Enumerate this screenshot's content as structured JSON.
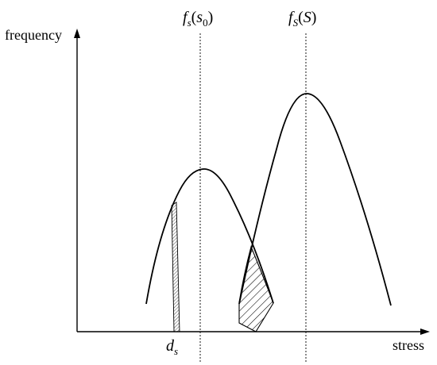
{
  "axes": {
    "y_label": "frequency",
    "x_label": "stress"
  },
  "labels": {
    "left_curve": {
      "f": "f",
      "sub": "s",
      "open": "(",
      "s": "s",
      "s_sub": "0",
      "close": ")"
    },
    "right_curve": {
      "f": "f",
      "sub": "S",
      "open": "(",
      "S": "S",
      "close": ")"
    },
    "ds": {
      "d": "d",
      "sub": "s"
    }
  },
  "colors": {
    "stroke": "#000000",
    "background": "#ffffff"
  }
}
